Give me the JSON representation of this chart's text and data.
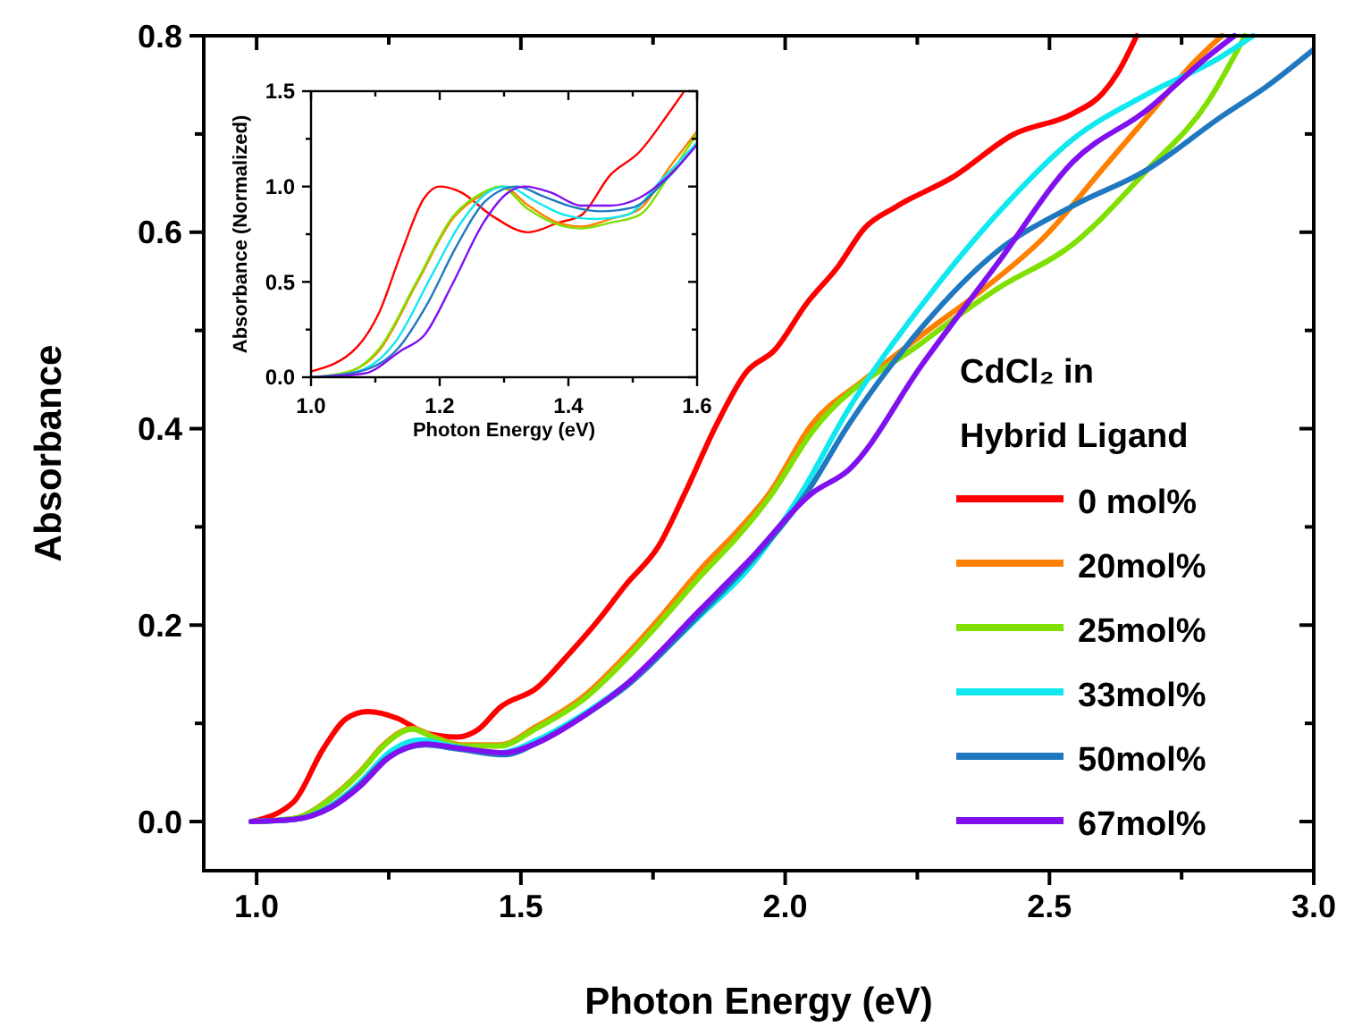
{
  "chart_data": [
    {
      "type": "line",
      "xlabel": "Photon Energy (eV)",
      "ylabel": "Absorbance",
      "legend_title": "CdCl₂ in Hybrid Ligand",
      "legend": "bottom right",
      "grid": false,
      "line_style": "solid",
      "marker": "none",
      "xlim": [
        0.9,
        3.0
      ],
      "xticks": [
        {
          "value": 1.0,
          "label": "1.0"
        },
        {
          "value": 1.25,
          "label": null
        },
        {
          "value": 1.5,
          "label": "1.5"
        },
        {
          "value": 1.75,
          "label": null
        },
        {
          "value": 2.0,
          "label": "2.0"
        },
        {
          "value": 2.25,
          "label": null
        },
        {
          "value": 2.5,
          "label": "2.5"
        },
        {
          "value": 2.75,
          "label": null
        },
        {
          "value": 3.0,
          "label": "3.0"
        }
      ],
      "ylim": [
        -0.05,
        0.8
      ],
      "yticks": [
        {
          "value": 0,
          "label": "0.0"
        },
        {
          "value": 0.1,
          "label": null
        },
        {
          "value": 0.2,
          "label": "0.2"
        },
        {
          "value": 0.3,
          "label": null
        },
        {
          "value": 0.4,
          "label": "0.4"
        },
        {
          "value": 0.5,
          "label": null
        },
        {
          "value": 0.6,
          "label": "0.6"
        },
        {
          "value": 0.7,
          "label": null
        },
        {
          "value": 0.8,
          "label": "0.8"
        }
      ],
      "series": [
        {
          "name": "0 mol%",
          "color": "#ff0000",
          "x": [
            0.99,
            1.07,
            1.126,
            1.17,
            1.21,
            1.267,
            1.32,
            1.38,
            1.42,
            1.46,
            1.53,
            1.59,
            1.645,
            1.7,
            1.76,
            1.81,
            1.87,
            1.927,
            1.98,
            2.04,
            2.1,
            2.15,
            2.21,
            2.32,
            2.43,
            2.545,
            2.6,
            2.63,
            2.665
          ],
          "values": [
            0,
            0.02,
            0.074,
            0.105,
            0.112,
            0.105,
            0.09,
            0.086,
            0.094,
            0.116,
            0.136,
            0.17,
            0.204,
            0.242,
            0.28,
            0.334,
            0.404,
            0.458,
            0.48,
            0.527,
            0.565,
            0.604,
            0.626,
            0.657,
            0.699,
            0.721,
            0.741,
            0.763,
            0.8
          ]
        },
        {
          "name": "20mol%",
          "color": "#ff8000",
          "x": [
            0.99,
            1.07,
            1.14,
            1.196,
            1.24,
            1.295,
            1.337,
            1.39,
            1.46,
            1.53,
            1.62,
            1.7,
            1.77,
            1.84,
            1.91,
            1.97,
            2.05,
            2.15,
            2.26,
            2.375,
            2.49,
            2.6,
            2.686,
            2.77,
            2.826
          ],
          "values": [
            0,
            0.003,
            0.024,
            0.051,
            0.078,
            0.095,
            0.086,
            0.078,
            0.078,
            0.097,
            0.128,
            0.17,
            0.212,
            0.257,
            0.296,
            0.334,
            0.404,
            0.45,
            0.496,
            0.542,
            0.595,
            0.664,
            0.718,
            0.771,
            0.8
          ]
        },
        {
          "name": "25mol%",
          "color": "#80e000",
          "x": [
            0.99,
            1.07,
            1.14,
            1.196,
            1.24,
            1.295,
            1.337,
            1.39,
            1.46,
            1.53,
            1.62,
            1.7,
            1.77,
            1.84,
            1.91,
            1.97,
            2.05,
            2.26,
            2.4,
            2.545,
            2.686,
            2.8,
            2.87
          ],
          "values": [
            0,
            0.003,
            0.023,
            0.05,
            0.077,
            0.094,
            0.085,
            0.077,
            0.077,
            0.095,
            0.125,
            0.166,
            0.207,
            0.25,
            0.29,
            0.33,
            0.396,
            0.488,
            0.542,
            0.588,
            0.664,
            0.733,
            0.8
          ]
        },
        {
          "name": "33mol%",
          "color": "#10e8f0",
          "x": [
            0.99,
            1.07,
            1.14,
            1.196,
            1.25,
            1.31,
            1.36,
            1.46,
            1.53,
            1.62,
            1.7,
            1.84,
            1.93,
            2.03,
            2.12,
            2.26,
            2.4,
            2.545,
            2.686,
            2.826,
            2.885
          ],
          "values": [
            0,
            0.002,
            0.016,
            0.04,
            0.07,
            0.083,
            0.078,
            0.07,
            0.083,
            0.11,
            0.14,
            0.21,
            0.257,
            0.334,
            0.42,
            0.527,
            0.618,
            0.695,
            0.741,
            0.779,
            0.8
          ]
        },
        {
          "name": "50mol%",
          "color": "#1f78c0",
          "x": [
            0.99,
            1.07,
            1.14,
            1.196,
            1.25,
            1.32,
            1.38,
            1.47,
            1.53,
            1.62,
            1.7,
            1.84,
            1.93,
            2.04,
            2.12,
            2.26,
            2.4,
            2.545,
            2.686,
            2.826,
            2.91,
            3.0
          ],
          "values": [
            0,
            0.002,
            0.015,
            0.038,
            0.066,
            0.078,
            0.074,
            0.068,
            0.08,
            0.108,
            0.138,
            0.212,
            0.262,
            0.334,
            0.404,
            0.504,
            0.58,
            0.627,
            0.664,
            0.718,
            0.748,
            0.786
          ]
        },
        {
          "name": "67mol%",
          "color": "#8010f0",
          "x": [
            0.99,
            1.07,
            1.14,
            1.196,
            1.25,
            1.32,
            1.38,
            1.47,
            1.53,
            1.62,
            1.7,
            1.84,
            1.93,
            2.05,
            2.12,
            2.26,
            2.4,
            2.545,
            2.686,
            2.8,
            2.85
          ],
          "values": [
            0,
            0.002,
            0.014,
            0.036,
            0.065,
            0.079,
            0.075,
            0.07,
            0.08,
            0.108,
            0.14,
            0.216,
            0.265,
            0.334,
            0.358,
            0.466,
            0.567,
            0.672,
            0.725,
            0.779,
            0.8
          ]
        }
      ]
    },
    {
      "type": "line",
      "xlabel": "Photon Energy (eV)",
      "ylabel": "Absorbance (Normalized)",
      "legend": false,
      "grid": false,
      "line_style": "solid",
      "marker": "none",
      "xlim": [
        1.0,
        1.6
      ],
      "xticks": [
        {
          "value": 1.0,
          "label": "1.0"
        },
        {
          "value": 1.1,
          "label": null
        },
        {
          "value": 1.2,
          "label": "1.2"
        },
        {
          "value": 1.3,
          "label": null
        },
        {
          "value": 1.4,
          "label": "1.4"
        },
        {
          "value": 1.5,
          "label": null
        },
        {
          "value": 1.6,
          "label": "1.6"
        }
      ],
      "ylim": [
        0,
        1.5
      ],
      "yticks": [
        {
          "value": 0,
          "label": "0.0"
        },
        {
          "value": 0.25,
          "label": null
        },
        {
          "value": 0.5,
          "label": "0.5"
        },
        {
          "value": 0.75,
          "label": null
        },
        {
          "value": 1.0,
          "label": "1.0"
        },
        {
          "value": 1.25,
          "label": null
        },
        {
          "value": 1.5,
          "label": "1.5"
        }
      ],
      "series": [
        {
          "color": "#ff0000",
          "x": [
            1.0,
            1.072,
            1.106,
            1.14,
            1.176,
            1.2,
            1.233,
            1.28,
            1.338,
            1.384,
            1.42,
            1.465,
            1.51,
            1.557,
            1.58
          ],
          "values": [
            0.03,
            0.16,
            0.34,
            0.65,
            0.94,
            1.0,
            0.97,
            0.85,
            0.76,
            0.81,
            0.85,
            1.06,
            1.18,
            1.39,
            1.5
          ]
        },
        {
          "color": "#ff8000",
          "x": [
            1.0,
            1.06,
            1.106,
            1.164,
            1.22,
            1.268,
            1.297,
            1.338,
            1.384,
            1.42,
            1.465,
            1.51,
            1.557,
            1.6
          ],
          "values": [
            0,
            0.03,
            0.14,
            0.49,
            0.83,
            0.96,
            1.0,
            0.9,
            0.81,
            0.79,
            0.83,
            0.88,
            1.1,
            1.29
          ]
        },
        {
          "color": "#80e000",
          "x": [
            1.0,
            1.06,
            1.106,
            1.164,
            1.22,
            1.268,
            1.293,
            1.338,
            1.384,
            1.42,
            1.465,
            1.51,
            1.557,
            1.6
          ],
          "values": [
            0,
            0.03,
            0.15,
            0.5,
            0.84,
            0.97,
            1.0,
            0.88,
            0.8,
            0.78,
            0.81,
            0.85,
            1.06,
            1.28
          ]
        },
        {
          "color": "#10e8f0",
          "x": [
            1.0,
            1.072,
            1.13,
            1.187,
            1.233,
            1.28,
            1.303,
            1.35,
            1.395,
            1.44,
            1.49,
            1.546,
            1.6
          ],
          "values": [
            0,
            0.03,
            0.18,
            0.53,
            0.81,
            0.98,
            1.0,
            0.92,
            0.85,
            0.83,
            0.85,
            1.04,
            1.23
          ]
        },
        {
          "color": "#1f78c0",
          "x": [
            1.0,
            1.075,
            1.135,
            1.18,
            1.225,
            1.27,
            1.32,
            1.36,
            1.41,
            1.45,
            1.5,
            1.55,
            1.6
          ],
          "values": [
            0,
            0.03,
            0.15,
            0.38,
            0.68,
            0.92,
            1.0,
            0.95,
            0.89,
            0.87,
            0.89,
            1.03,
            1.22
          ]
        },
        {
          "color": "#8010f0",
          "x": [
            1.0,
            1.083,
            1.14,
            1.176,
            1.22,
            1.268,
            1.303,
            1.332,
            1.372,
            1.42,
            1.465,
            1.51,
            1.557,
            1.6
          ],
          "values": [
            0,
            0.02,
            0.14,
            0.22,
            0.49,
            0.81,
            0.96,
            1.0,
            0.97,
            0.9,
            0.9,
            0.94,
            1.06,
            1.22
          ]
        }
      ]
    }
  ]
}
